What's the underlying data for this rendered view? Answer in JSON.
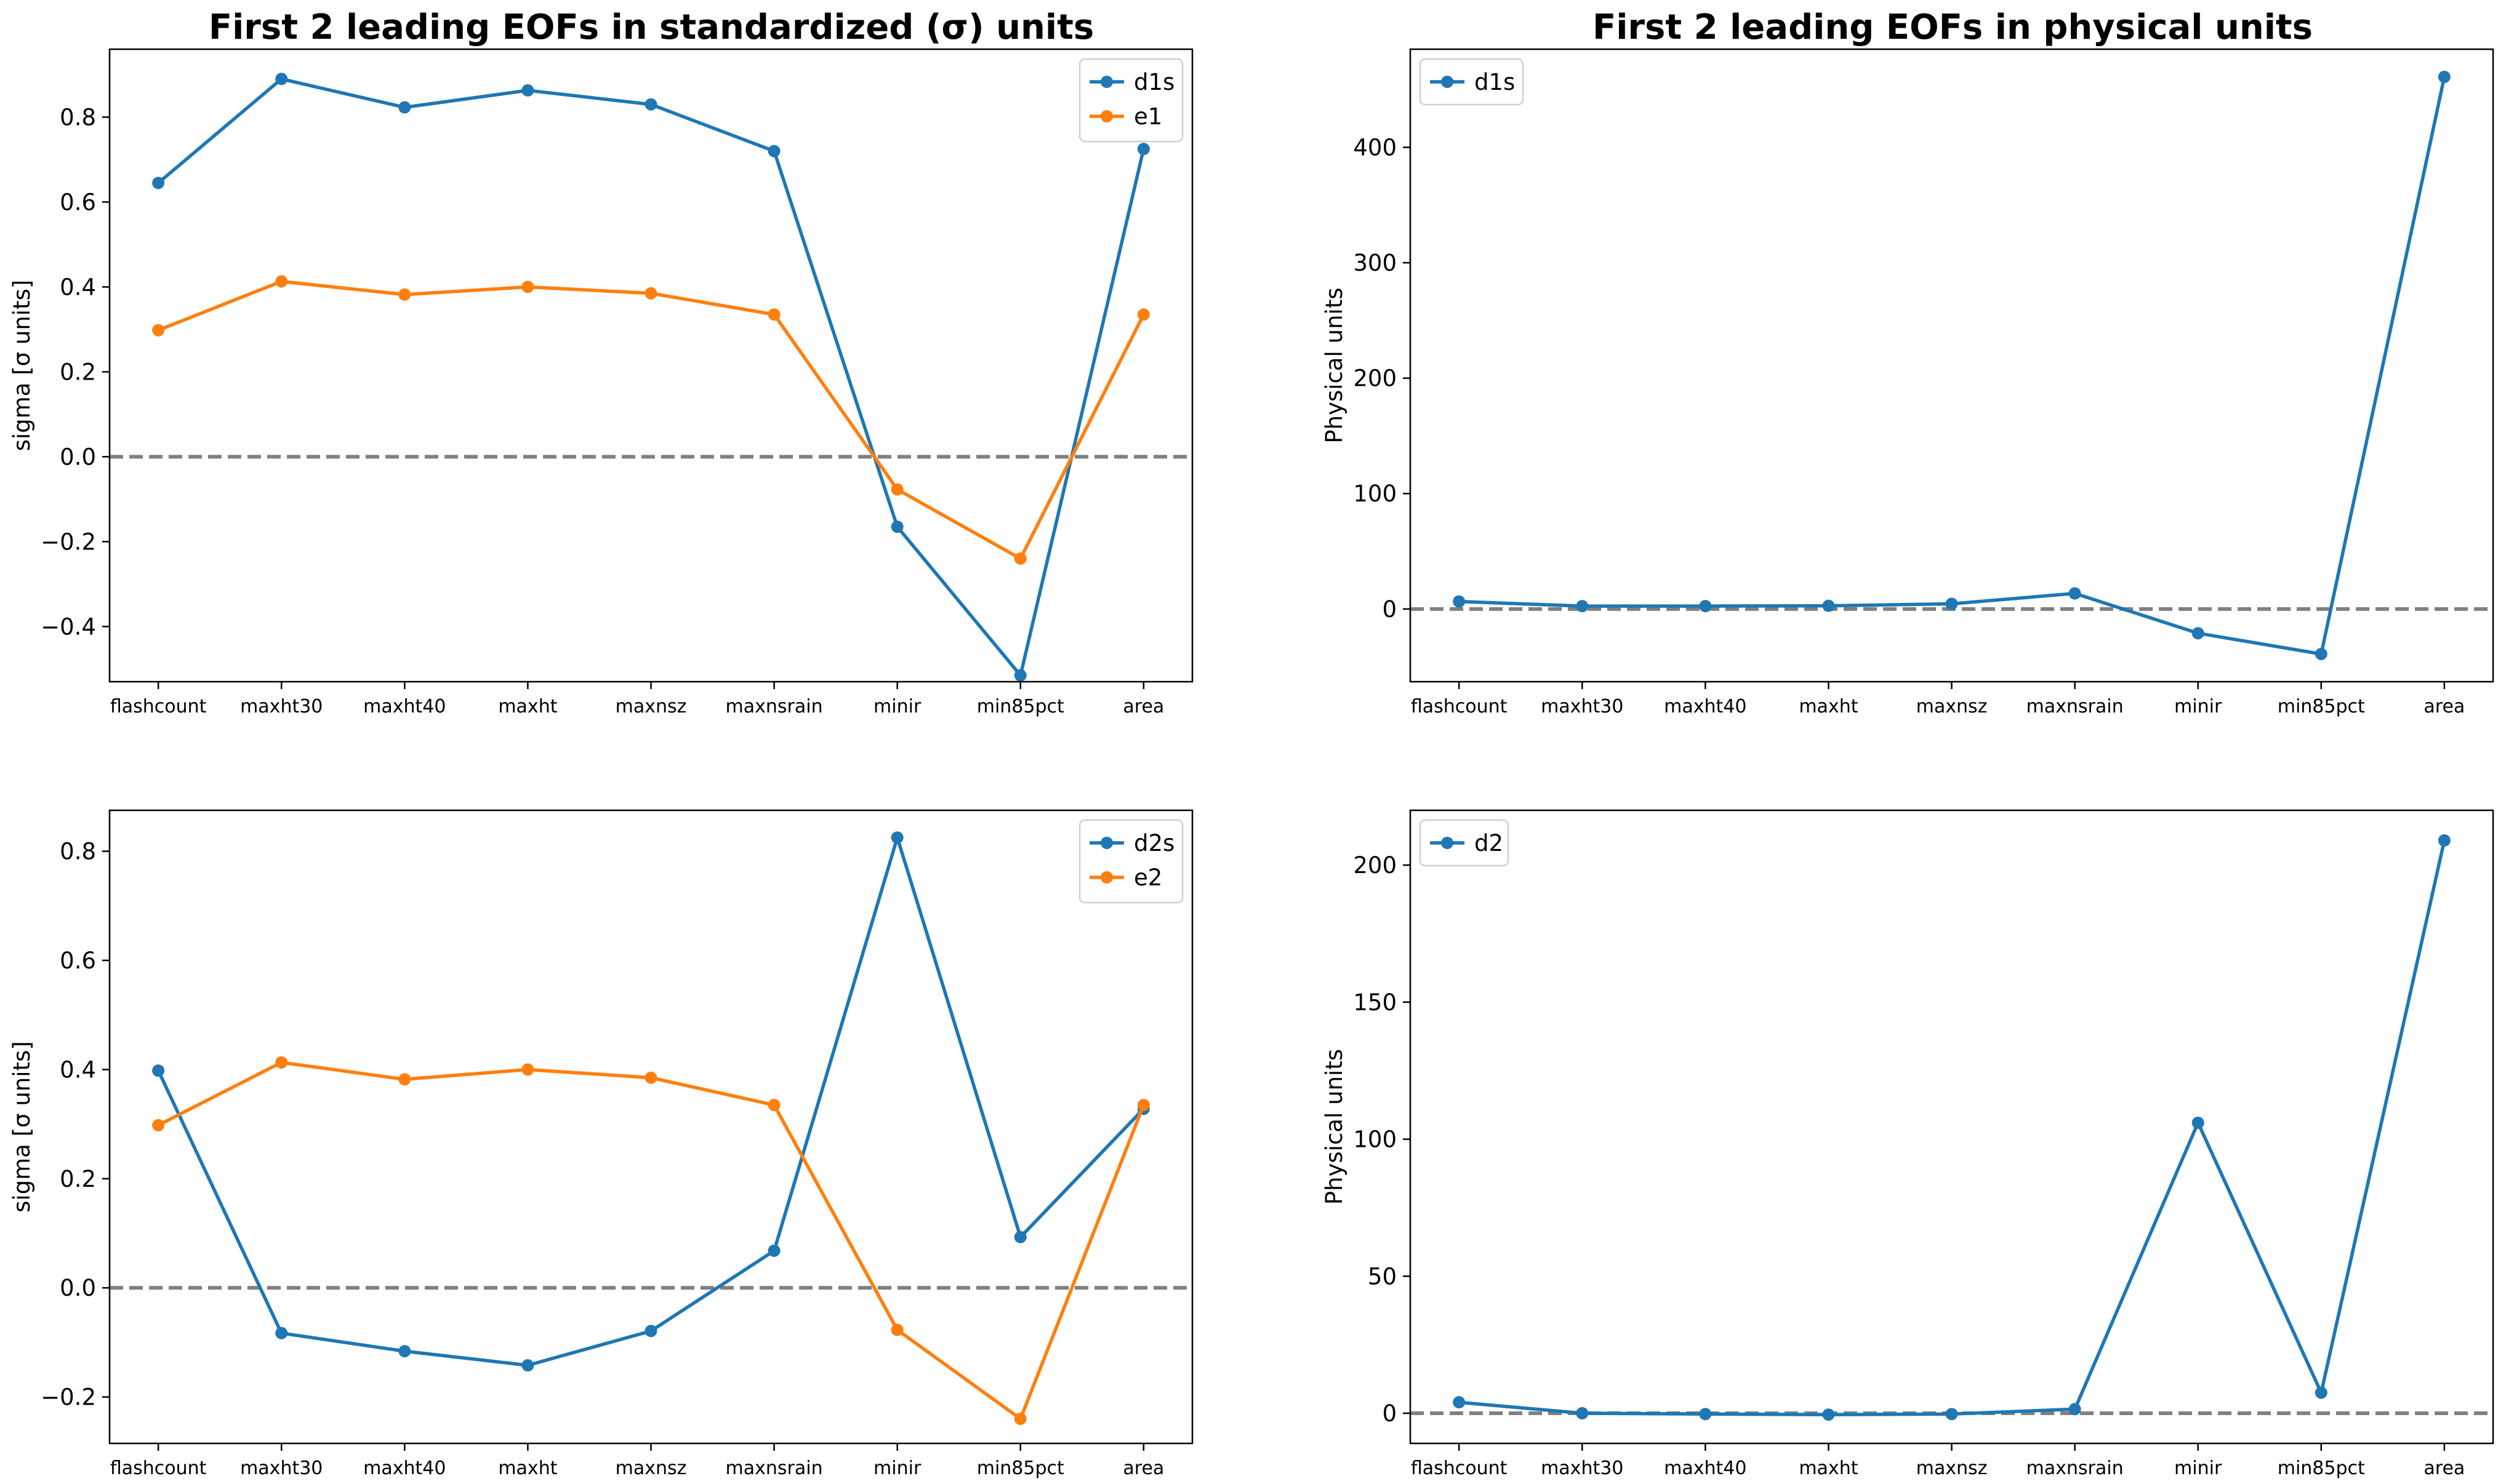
{
  "colors": {
    "blue": "#1f77b4",
    "orange": "#ff7f0e",
    "zero_line": "#808080"
  },
  "chart_data": [
    {
      "type": "line",
      "title": "First 2 leading EOFs in standardized (σ) units",
      "ylabel": "sigma [σ units]",
      "xlabel": "",
      "categories": [
        "flashcount",
        "maxht30",
        "maxht40",
        "maxht",
        "maxnsz",
        "maxnsrain",
        "minir",
        "min85pct",
        "area"
      ],
      "ylim": [
        -0.53,
        0.96
      ],
      "yticks": [
        -0.4,
        -0.2,
        0.0,
        0.2,
        0.4,
        0.6,
        0.8
      ],
      "ytick_labels": [
        "−0.4",
        "−0.2",
        "0.0",
        "0.2",
        "0.4",
        "0.6",
        "0.8"
      ],
      "zero_line": true,
      "grid": false,
      "legend_position": "top-right",
      "series": [
        {
          "name": "d1s",
          "color": "#1f77b4",
          "values": [
            0.645,
            0.89,
            0.823,
            0.863,
            0.83,
            0.72,
            -0.165,
            -0.515,
            0.725
          ]
        },
        {
          "name": "e1",
          "color": "#ff7f0e",
          "values": [
            0.298,
            0.413,
            0.382,
            0.4,
            0.385,
            0.335,
            -0.077,
            -0.24,
            0.335
          ]
        }
      ]
    },
    {
      "type": "line",
      "title": "First 2 leading EOFs in physical units",
      "ylabel": "Physical units",
      "xlabel": "",
      "categories": [
        "flashcount",
        "maxht30",
        "maxht40",
        "maxht",
        "maxnsz",
        "maxnsrain",
        "minir",
        "min85pct",
        "area"
      ],
      "ylim": [
        -63,
        485
      ],
      "yticks": [
        0,
        100,
        200,
        300,
        400
      ],
      "ytick_labels": [
        "0",
        "100",
        "200",
        "300",
        "400"
      ],
      "zero_line": true,
      "grid": false,
      "legend_position": "top-left",
      "series": [
        {
          "name": "d1s",
          "color": "#1f77b4",
          "values": [
            6.5,
            2.5,
            2.5,
            2.8,
            4.5,
            13.5,
            -21,
            -39,
            461
          ]
        }
      ]
    },
    {
      "type": "line",
      "title": "",
      "ylabel": "sigma [σ units]",
      "xlabel": "",
      "categories": [
        "flashcount",
        "maxht30",
        "maxht40",
        "maxht",
        "maxnsz",
        "maxnsrain",
        "minir",
        "min85pct",
        "area"
      ],
      "ylim": [
        -0.285,
        0.875
      ],
      "yticks": [
        -0.2,
        0.0,
        0.2,
        0.4,
        0.6,
        0.8
      ],
      "ytick_labels": [
        "−0.2",
        "0.0",
        "0.2",
        "0.4",
        "0.6",
        "0.8"
      ],
      "zero_line": true,
      "grid": false,
      "legend_position": "top-right",
      "series": [
        {
          "name": "d2s",
          "color": "#1f77b4",
          "values": [
            0.398,
            -0.083,
            -0.116,
            -0.142,
            -0.079,
            0.068,
            0.825,
            0.093,
            0.328
          ]
        },
        {
          "name": "e2",
          "color": "#ff7f0e",
          "values": [
            0.298,
            0.413,
            0.382,
            0.4,
            0.385,
            0.335,
            -0.077,
            -0.24,
            0.335
          ]
        }
      ]
    },
    {
      "type": "line",
      "title": "",
      "ylabel": "Physical units",
      "xlabel": "",
      "categories": [
        "flashcount",
        "maxht30",
        "maxht40",
        "maxht",
        "maxnsz",
        "maxnsrain",
        "minir",
        "min85pct",
        "area"
      ],
      "ylim": [
        -11,
        220
      ],
      "yticks": [
        0,
        50,
        100,
        150,
        200
      ],
      "ytick_labels": [
        "0",
        "50",
        "100",
        "150",
        "200"
      ],
      "zero_line": true,
      "grid": false,
      "legend_position": "top-left",
      "series": [
        {
          "name": "d2",
          "color": "#1f77b4",
          "values": [
            4.0,
            0.0,
            -0.3,
            -0.5,
            -0.3,
            1.5,
            106,
            7.5,
            209
          ]
        }
      ]
    }
  ]
}
